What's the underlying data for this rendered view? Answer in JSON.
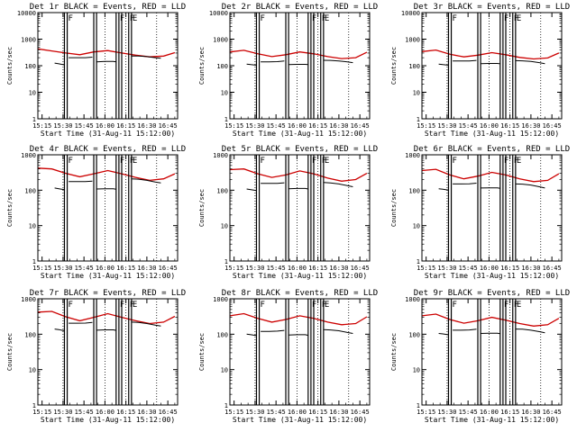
{
  "figure": {
    "background": "#ffffff",
    "event_color": "#000000",
    "lld_color": "#cc0000"
  },
  "chart_data": {
    "type": "line",
    "xaxis": {
      "label": "Start Time (31-Aug-11 15:12:00)",
      "ticks": [
        "15:15",
        "15:30",
        "15:45",
        "16:00",
        "16:15",
        "16:30",
        "16:45"
      ],
      "tick_minutes": [
        15,
        30,
        45,
        60,
        75,
        90,
        105
      ],
      "range_minutes": [
        12,
        112
      ]
    },
    "yaxis": {
      "label": "Counts/sec",
      "scale": "log",
      "ticks_top_row": [
        "10000",
        "1000",
        "100",
        "10",
        "1"
      ],
      "ticks_lower_rows": [
        "1000",
        "100",
        "10",
        "1"
      ],
      "range_top_row": [
        1,
        10000
      ],
      "range_lower_rows": [
        1,
        1000
      ]
    },
    "dotted_time_markers_minutes": [
      30,
      60,
      75,
      97
    ],
    "flag_lines_minutes": [
      31,
      33,
      52,
      54,
      68,
      70,
      72,
      77,
      79
    ],
    "flag_labels": [
      {
        "text": "F",
        "minute": 33
      },
      {
        "text": "F",
        "minute": 70
      },
      {
        "text": "F",
        "minute": 77
      },
      {
        "text": "E",
        "minute": 79
      }
    ],
    "panels": [
      {
        "title": "Det 1r BLACK = Events, RED = LLD",
        "series": [
          {
            "name": "LLD",
            "color": "#cc0000",
            "x": [
              12,
              22,
              32,
              42,
              52,
              62,
              72,
              82,
              92,
              102,
              110
            ],
            "y": [
              430,
              360,
              300,
              260,
              330,
              370,
              300,
              250,
              215,
              230,
              310
            ]
          },
          {
            "name": "Events",
            "color": "#000000",
            "segments": [
              {
                "x": [
                  24,
                  27,
                  29,
                  31
                ],
                "y": [
                  125,
                  118,
                  112,
                  108
                ]
              },
              {
                "x": [
                  34,
                  40,
                  46,
                  51
                ],
                "y": [
                  200,
                  200,
                  200,
                  210
                ]
              },
              {
                "x": [
                  54,
                  60,
                  66,
                  68
                ],
                "y": [
                  140,
                  145,
                  145,
                  140
                ]
              },
              {
                "x": [
                  79,
                  84,
                  90,
                  96,
                  100
                ],
                "y": [
                  230,
                  230,
                  220,
                  200,
                  190
                ]
              }
            ]
          }
        ]
      },
      {
        "title": "Det 2r BLACK = Events, RED = LLD",
        "series": [
          {
            "name": "LLD",
            "color": "#cc0000",
            "x": [
              12,
              22,
              32,
              42,
              52,
              62,
              72,
              82,
              92,
              102,
              110
            ],
            "y": [
              330,
              380,
              280,
              220,
              260,
              330,
              280,
              220,
              185,
              200,
              320
            ]
          },
          {
            "name": "Events",
            "color": "#000000",
            "segments": [
              {
                "x": [
                  24,
                  27,
                  29,
                  31
                ],
                "y": [
                  115,
                  110,
                  107,
                  105
                ]
              },
              {
                "x": [
                  34,
                  40,
                  46,
                  51
                ],
                "y": [
                  140,
                  140,
                  142,
                  150
                ]
              },
              {
                "x": [
                  54,
                  60,
                  66,
                  68
                ],
                "y": [
                  110,
                  112,
                  112,
                  110
                ]
              },
              {
                "x": [
                  79,
                  84,
                  90,
                  96,
                  100
                ],
                "y": [
                  160,
                  158,
                  150,
                  140,
                  130
                ]
              }
            ]
          }
        ]
      },
      {
        "title": "Det 3r BLACK = Events, RED = LLD",
        "series": [
          {
            "name": "LLD",
            "color": "#cc0000",
            "x": [
              12,
              22,
              32,
              42,
              52,
              62,
              72,
              82,
              92,
              102,
              110
            ],
            "y": [
              340,
              390,
              270,
              215,
              250,
              310,
              260,
              205,
              180,
              195,
              300
            ]
          },
          {
            "name": "Events",
            "color": "#000000",
            "segments": [
              {
                "x": [
                  24,
                  27,
                  29,
                  31
                ],
                "y": [
                  115,
                  110,
                  107,
                  105
                ]
              },
              {
                "x": [
                  34,
                  40,
                  46,
                  51
                ],
                "y": [
                  150,
                  150,
                  150,
                  158
                ]
              },
              {
                "x": [
                  54,
                  60,
                  66,
                  68
                ],
                "y": [
                  120,
                  122,
                  122,
                  118
                ]
              },
              {
                "x": [
                  79,
                  84,
                  90,
                  96,
                  100
                ],
                "y": [
                  155,
                  152,
                  145,
                  130,
                  120
                ]
              }
            ]
          }
        ]
      },
      {
        "title": "Det 4r BLACK = Events, RED = LLD",
        "series": [
          {
            "name": "LLD",
            "color": "#cc0000",
            "x": [
              12,
              22,
              32,
              42,
              52,
              62,
              72,
              82,
              92,
              102,
              110
            ],
            "y": [
              420,
              400,
              300,
              240,
              290,
              360,
              290,
              230,
              190,
              210,
              290
            ]
          },
          {
            "name": "Events",
            "color": "#000000",
            "segments": [
              {
                "x": [
                  24,
                  27,
                  29,
                  31
                ],
                "y": [
                  115,
                  110,
                  107,
                  103
                ]
              },
              {
                "x": [
                  34,
                  40,
                  46,
                  51
                ],
                "y": [
                  175,
                  175,
                  175,
                  180
                ]
              },
              {
                "x": [
                  54,
                  60,
                  66,
                  68
                ],
                "y": [
                  108,
                  110,
                  110,
                  106
                ]
              },
              {
                "x": [
                  79,
                  84,
                  90,
                  96,
                  100
                ],
                "y": [
                  210,
                  205,
                  190,
                  170,
                  160
                ]
              }
            ]
          }
        ]
      },
      {
        "title": "Det 5r BLACK = Events, RED = LLD",
        "series": [
          {
            "name": "LLD",
            "color": "#cc0000",
            "x": [
              12,
              22,
              32,
              42,
              52,
              62,
              72,
              82,
              92,
              102,
              110
            ],
            "y": [
              380,
              400,
              290,
              230,
              270,
              350,
              290,
              220,
              180,
              200,
              300
            ]
          },
          {
            "name": "Events",
            "color": "#000000",
            "segments": [
              {
                "x": [
                  24,
                  27,
                  29,
                  31
                ],
                "y": [
                  108,
                  104,
                  101,
                  98
                ]
              },
              {
                "x": [
                  34,
                  40,
                  46,
                  51
                ],
                "y": [
                  155,
                  155,
                  156,
                  162
                ]
              },
              {
                "x": [
                  54,
                  60,
                  66,
                  68
                ],
                "y": [
                  110,
                  112,
                  112,
                  108
                ]
              },
              {
                "x": [
                  79,
                  84,
                  90,
                  96,
                  100
                ],
                "y": [
                  165,
                  160,
                  150,
                  135,
                  125
                ]
              }
            ]
          }
        ]
      },
      {
        "title": "Det 6r BLACK = Events, RED = LLD",
        "series": [
          {
            "name": "LLD",
            "color": "#cc0000",
            "x": [
              12,
              22,
              32,
              42,
              52,
              62,
              72,
              82,
              92,
              102,
              110
            ],
            "y": [
              360,
              390,
              270,
              210,
              250,
              320,
              270,
              210,
              175,
              190,
              290
            ]
          },
          {
            "name": "Events",
            "color": "#000000",
            "segments": [
              {
                "x": [
                  24,
                  27,
                  29,
                  31
                ],
                "y": [
                  110,
                  106,
                  103,
                  100
                ]
              },
              {
                "x": [
                  34,
                  40,
                  46,
                  51
                ],
                "y": [
                  150,
                  150,
                  152,
                  158
                ]
              },
              {
                "x": [
                  54,
                  60,
                  66,
                  68
                ],
                "y": [
                  115,
                  117,
                  117,
                  113
                ]
              },
              {
                "x": [
                  79,
                  84,
                  90,
                  96,
                  100
                ],
                "y": [
                  150,
                  148,
                  140,
                  125,
                  115
                ]
              }
            ]
          }
        ]
      },
      {
        "title": "Det 7r BLACK = Events, RED = LLD",
        "series": [
          {
            "name": "LLD",
            "color": "#cc0000",
            "x": [
              12,
              22,
              32,
              42,
              52,
              62,
              72,
              82,
              92,
              102,
              110
            ],
            "y": [
              420,
              440,
              310,
              240,
              300,
              380,
              300,
              240,
              200,
              220,
              320
            ]
          },
          {
            "name": "Events",
            "color": "#000000",
            "segments": [
              {
                "x": [
                  24,
                  27,
                  29,
                  31
                ],
                "y": [
                  140,
                  135,
                  130,
                  125
                ]
              },
              {
                "x": [
                  34,
                  40,
                  46,
                  51
                ],
                "y": [
                  205,
                  205,
                  206,
                  215
                ]
              },
              {
                "x": [
                  54,
                  60,
                  66,
                  68
                ],
                "y": [
                  130,
                  133,
                  133,
                  128
                ]
              },
              {
                "x": [
                  79,
                  84,
                  90,
                  96,
                  100
                ],
                "y": [
                  220,
                  215,
                  200,
                  180,
                  170
                ]
              }
            ]
          }
        ]
      },
      {
        "title": "Det 8r BLACK = Events, RED = LLD",
        "series": [
          {
            "name": "LLD",
            "color": "#cc0000",
            "x": [
              12,
              22,
              32,
              42,
              52,
              62,
              72,
              82,
              92,
              102,
              110
            ],
            "y": [
              330,
              380,
              280,
              220,
              260,
              330,
              280,
              220,
              185,
              200,
              310
            ]
          },
          {
            "name": "Events",
            "color": "#000000",
            "segments": [
              {
                "x": [
                  24,
                  27,
                  29,
                  31
                ],
                "y": [
                  100,
                  97,
                  94,
                  92
                ]
              },
              {
                "x": [
                  34,
                  40,
                  46,
                  51
                ],
                "y": [
                  120,
                  120,
                  122,
                  128
                ]
              },
              {
                "x": [
                  54,
                  60,
                  66,
                  68
                ],
                "y": [
                  95,
                  97,
                  97,
                  93
                ]
              },
              {
                "x": [
                  79,
                  84,
                  90,
                  96,
                  100
                ],
                "y": [
                  135,
                  132,
                  125,
                  112,
                  105
                ]
              }
            ]
          }
        ]
      },
      {
        "title": "Det 9r BLACK = Events, RED = LLD",
        "series": [
          {
            "name": "LLD",
            "color": "#cc0000",
            "x": [
              12,
              22,
              32,
              42,
              52,
              62,
              72,
              82,
              92,
              102,
              110
            ],
            "y": [
              330,
              370,
              260,
              205,
              240,
              300,
              250,
              200,
              170,
              185,
              280
            ]
          },
          {
            "name": "Events",
            "color": "#000000",
            "segments": [
              {
                "x": [
                  24,
                  27,
                  29,
                  31
                ],
                "y": [
                  105,
                  102,
                  99,
                  96
                ]
              },
              {
                "x": [
                  34,
                  40,
                  46,
                  51
                ],
                "y": [
                  130,
                  130,
                  132,
                  138
                ]
              },
              {
                "x": [
                  54,
                  60,
                  66,
                  68
                ],
                "y": [
                  105,
                  107,
                  107,
                  103
                ]
              },
              {
                "x": [
                  79,
                  84,
                  90,
                  96,
                  100
                ],
                "y": [
                  140,
                  138,
                  130,
                  118,
                  110
                ]
              }
            ]
          }
        ]
      }
    ]
  }
}
